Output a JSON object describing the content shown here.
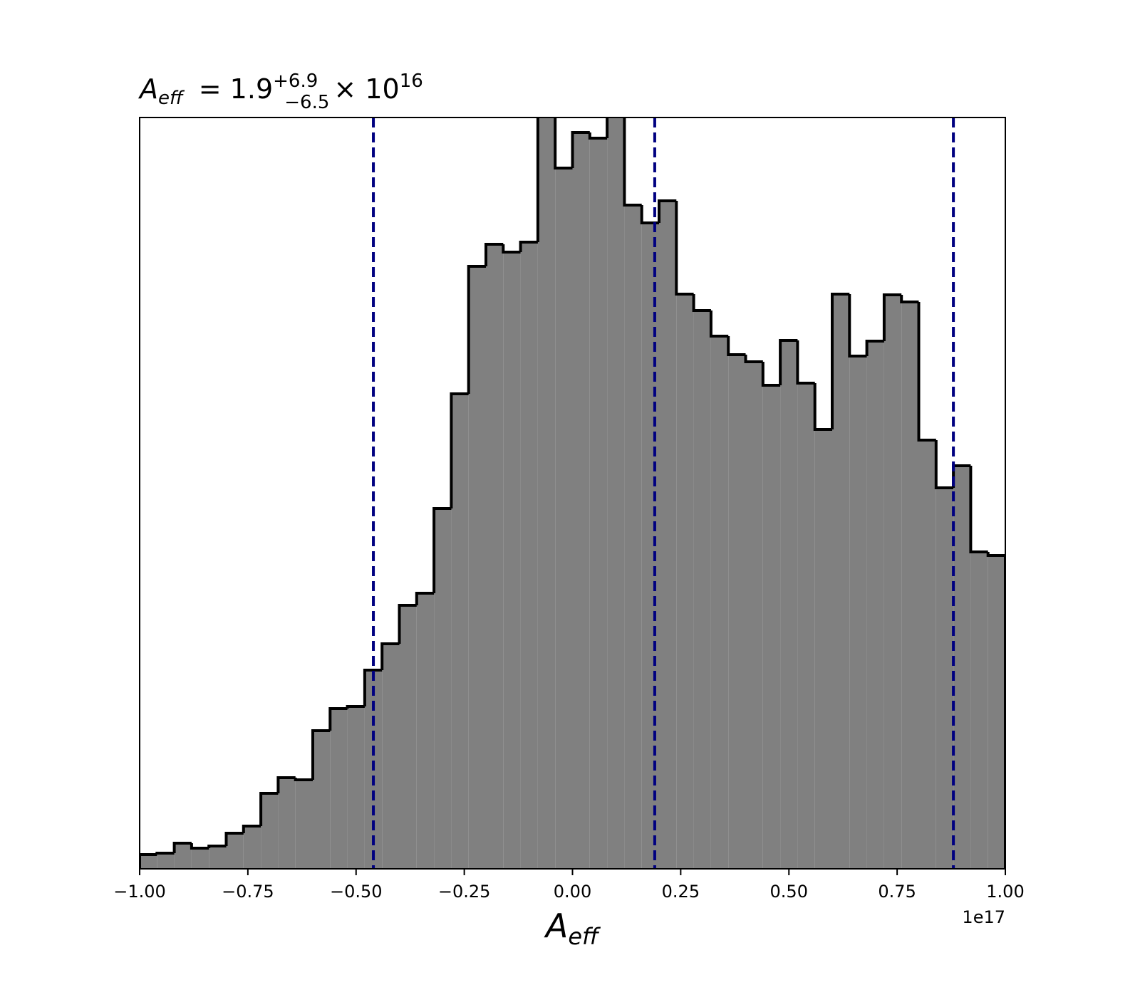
{
  "chart_data": {
    "type": "histogram",
    "title": {
      "symbol": "A",
      "subscript": "eff",
      "median": "= 1.9",
      "upper": "+6.9",
      "lower": "−6.5",
      "times": "× 10",
      "exponent": "16"
    },
    "x_label": {
      "symbol": "A",
      "subscript": "eff"
    },
    "x_offset_label": "1e17",
    "bins": [
      -1.0,
      -0.96,
      -0.92,
      -0.88,
      -0.84,
      -0.8,
      -0.76,
      -0.72,
      -0.68,
      -0.64,
      -0.6,
      -0.56,
      -0.52,
      -0.48,
      -0.44,
      -0.4,
      -0.36,
      -0.32,
      -0.28,
      -0.24,
      -0.2,
      -0.16,
      -0.12,
      -0.08,
      -0.04,
      0.0,
      0.04,
      0.08,
      0.12,
      0.16,
      0.2,
      0.24,
      0.28,
      0.32,
      0.36,
      0.4,
      0.44,
      0.48,
      0.52,
      0.56,
      0.6,
      0.64,
      0.68,
      0.72,
      0.76,
      0.8,
      0.84,
      0.88,
      0.92,
      0.96,
      1.0
    ],
    "values": [
      20,
      22,
      36,
      29,
      32,
      50,
      60,
      106,
      128,
      125,
      194,
      225,
      228,
      279,
      316,
      370,
      387,
      506,
      667,
      846,
      877,
      866,
      880,
      1070,
      984,
      1034,
      1026,
      1060,
      932,
      907,
      938,
      807,
      784,
      748,
      722,
      712,
      679,
      742,
      682,
      617,
      807,
      720,
      741,
      806,
      796,
      602,
      535,
      566,
      445,
      440
    ],
    "color": "#808080",
    "edge_color": "#000000",
    "quantiles": [
      -0.46,
      0.19,
      0.88
    ],
    "quantile_color": "#000080",
    "xlim": [
      -1.0,
      1.0
    ],
    "xticks": [
      {
        "value": -1.0,
        "label": "−1.00"
      },
      {
        "value": -0.75,
        "label": "−0.75"
      },
      {
        "value": -0.5,
        "label": "−0.50"
      },
      {
        "value": -0.25,
        "label": "−0.25"
      },
      {
        "value": 0.0,
        "label": "0.00"
      },
      {
        "value": 0.25,
        "label": "0.25"
      },
      {
        "value": 0.5,
        "label": "0.50"
      },
      {
        "value": 0.75,
        "label": "0.75"
      },
      {
        "value": 1.0,
        "label": "1.00"
      }
    ],
    "ylim": [
      0,
      1055
    ]
  }
}
